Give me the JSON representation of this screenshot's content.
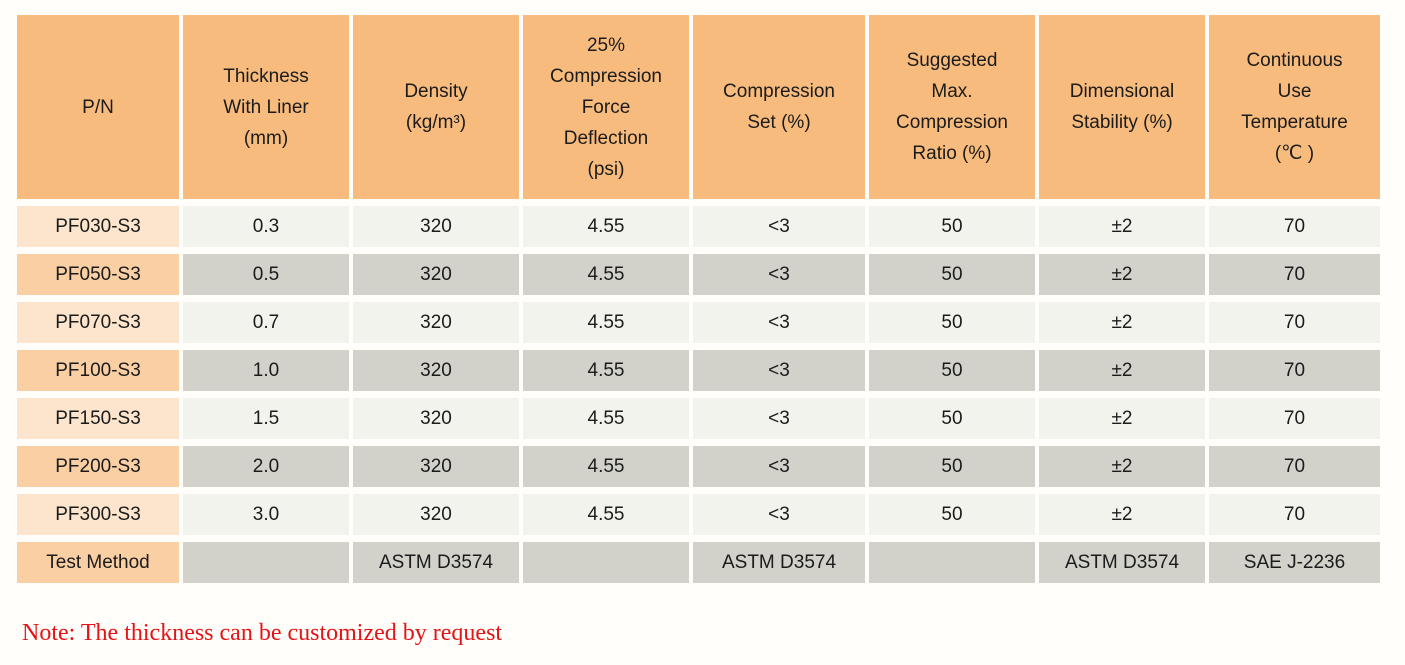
{
  "page": {
    "note": "Note: The thickness can be customized by request"
  },
  "colors": {
    "header_bg": "#f8bb7e",
    "pn_light": "#fce5cc",
    "pn_dark": "#facfa4",
    "cell_light": "#f3f3ee",
    "cell_dark": "#d2d2cb",
    "text": "#1b1b1b",
    "note_color": "#e41315",
    "page_bg": "#fffefb"
  },
  "table": {
    "columns": [
      {
        "id": "pn",
        "label": "P/N"
      },
      {
        "id": "thickness_with_liner",
        "label": "Thickness\nWith Liner\n(mm)"
      },
      {
        "id": "density",
        "label": "Density\n(kg/m³)"
      },
      {
        "id": "compression_force_deflection",
        "label": "25%\nCompression\nForce\nDeflection\n(psi)"
      },
      {
        "id": "compression_set",
        "label": "Compression\nSet (%)"
      },
      {
        "id": "suggested_max_compression_ratio",
        "label": "Suggested\nMax.\nCompression\nRatio (%)"
      },
      {
        "id": "dimensional_stability",
        "label": "Dimensional\nStability (%)"
      },
      {
        "id": "continuous_use_temperature",
        "label": "Continuous\nUse\nTemperature\n(℃ )"
      }
    ],
    "rows": [
      {
        "pn": "PF030-S3",
        "values": [
          "0.3",
          "320",
          "4.55",
          "<3",
          "50",
          "±2",
          "70"
        ]
      },
      {
        "pn": "PF050-S3",
        "values": [
          "0.5",
          "320",
          "4.55",
          "<3",
          "50",
          "±2",
          "70"
        ]
      },
      {
        "pn": "PF070-S3",
        "values": [
          "0.7",
          "320",
          "4.55",
          "<3",
          "50",
          "±2",
          "70"
        ]
      },
      {
        "pn": "PF100-S3",
        "values": [
          "1.0",
          "320",
          "4.55",
          "<3",
          "50",
          "±2",
          "70"
        ]
      },
      {
        "pn": "PF150-S3",
        "values": [
          "1.5",
          "320",
          "4.55",
          "<3",
          "50",
          "±2",
          "70"
        ]
      },
      {
        "pn": "PF200-S3",
        "values": [
          "2.0",
          "320",
          "4.55",
          "<3",
          "50",
          "±2",
          "70"
        ]
      },
      {
        "pn": "PF300-S3",
        "values": [
          "3.0",
          "320",
          "4.55",
          "<3",
          "50",
          "±2",
          "70"
        ]
      }
    ],
    "test_method": {
      "label": "Test Method",
      "values": [
        "",
        "ASTM D3574",
        "",
        "ASTM D3574",
        "",
        "ASTM D3574",
        "SAE J-2236"
      ]
    }
  }
}
